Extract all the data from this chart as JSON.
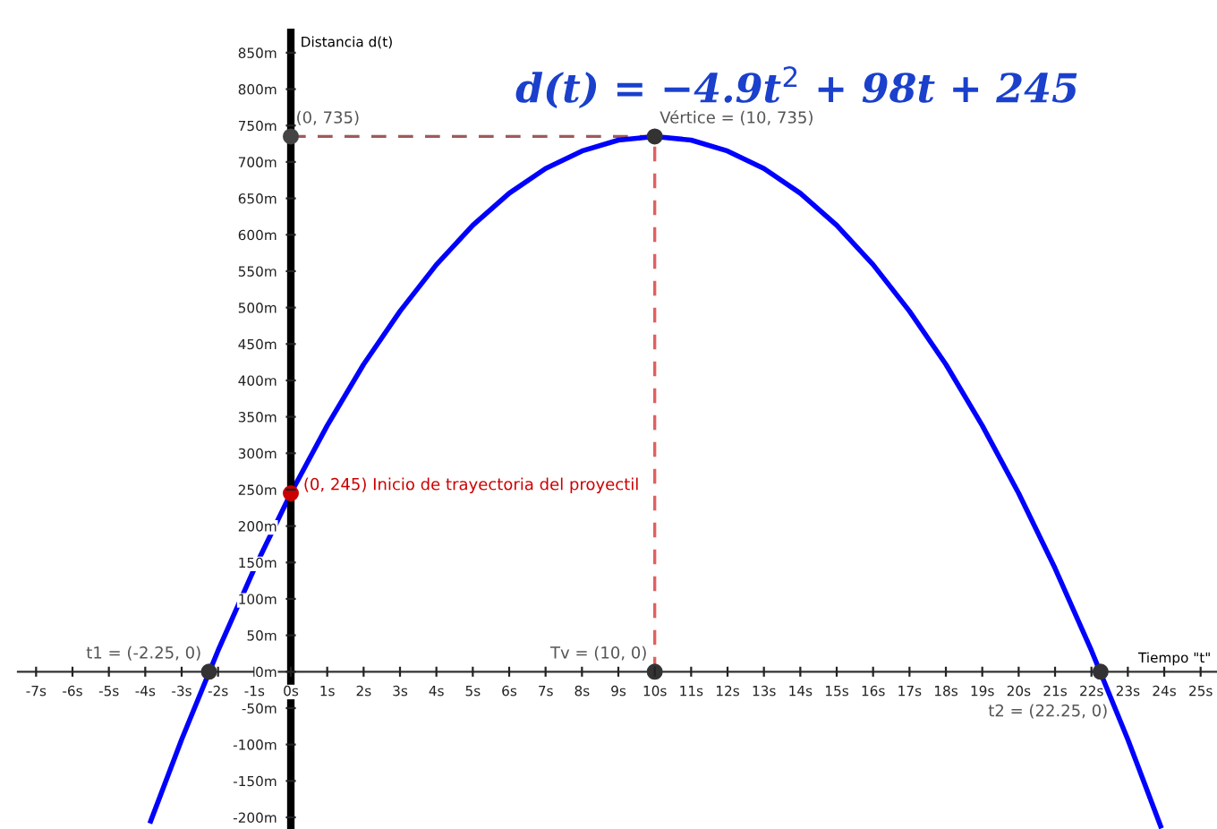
{
  "chart_data": {
    "type": "line",
    "title": "d(t) = −4.9t$^{2}$ + 98t + 245",
    "xlabel": "Tiempo \"t\"",
    "ylabel": "Distancia d(t)",
    "xlim": [
      -7.5,
      25.45
    ],
    "ylim": [
      -216,
      878
    ],
    "xticks": [
      {
        "value": -7,
        "label": "-7s"
      },
      {
        "value": -6,
        "label": "-6s"
      },
      {
        "value": -5,
        "label": "-5s"
      },
      {
        "value": -4,
        "label": "-4s"
      },
      {
        "value": -3,
        "label": "-3s"
      },
      {
        "value": -2,
        "label": "-2s"
      },
      {
        "value": -1,
        "label": "-1s"
      },
      {
        "value": 0,
        "label": "0s"
      },
      {
        "value": 1,
        "label": "1s"
      },
      {
        "value": 2,
        "label": "2s"
      },
      {
        "value": 3,
        "label": "3s"
      },
      {
        "value": 4,
        "label": "4s"
      },
      {
        "value": 5,
        "label": "5s"
      },
      {
        "value": 6,
        "label": "6s"
      },
      {
        "value": 7,
        "label": "7s"
      },
      {
        "value": 8,
        "label": "8s"
      },
      {
        "value": 9,
        "label": "9s"
      },
      {
        "value": 10,
        "label": "10s"
      },
      {
        "value": 11,
        "label": "11s"
      },
      {
        "value": 12,
        "label": "12s"
      },
      {
        "value": 13,
        "label": "13s"
      },
      {
        "value": 14,
        "label": "14s"
      },
      {
        "value": 15,
        "label": "15s"
      },
      {
        "value": 16,
        "label": "16s"
      },
      {
        "value": 17,
        "label": "17s"
      },
      {
        "value": 18,
        "label": "18s"
      },
      {
        "value": 19,
        "label": "19s"
      },
      {
        "value": 20,
        "label": "20s"
      },
      {
        "value": 21,
        "label": "21s"
      },
      {
        "value": 22,
        "label": "22s"
      },
      {
        "value": 23,
        "label": "23s"
      },
      {
        "value": 24,
        "label": "24s"
      },
      {
        "value": 25,
        "label": "25s"
      }
    ],
    "yticks": [
      {
        "value": -200,
        "label": "-200m"
      },
      {
        "value": -150,
        "label": "-150m"
      },
      {
        "value": -100,
        "label": "-100m"
      },
      {
        "value": -50,
        "label": "-50m"
      },
      {
        "value": 0,
        "label": "0m"
      },
      {
        "value": 50,
        "label": "50m"
      },
      {
        "value": 100,
        "label": "100m"
      },
      {
        "value": 150,
        "label": "150m"
      },
      {
        "value": 200,
        "label": "200m"
      },
      {
        "value": 250,
        "label": "250m"
      },
      {
        "value": 300,
        "label": "300m"
      },
      {
        "value": 350,
        "label": "350m"
      },
      {
        "value": 400,
        "label": "400m"
      },
      {
        "value": 450,
        "label": "450m"
      },
      {
        "value": 500,
        "label": "500m"
      },
      {
        "value": 550,
        "label": "550m"
      },
      {
        "value": 600,
        "label": "600m"
      },
      {
        "value": 650,
        "label": "650m"
      },
      {
        "value": 700,
        "label": "700m"
      },
      {
        "value": 750,
        "label": "750m"
      },
      {
        "value": 800,
        "label": "800m"
      },
      {
        "value": 850,
        "label": "850m"
      }
    ],
    "grid": false,
    "series": [
      {
        "color": "#a05a5a",
        "line_style": "dashed",
        "x": [
          0,
          10
        ],
        "values": [
          735,
          735
        ]
      },
      {
        "color": "#e06060",
        "line_style": "dashed",
        "x": [
          10,
          10
        ],
        "values": [
          0,
          735
        ]
      },
      {
        "color": "#0000ff",
        "line_style": "solid",
        "x": [
          -3.85,
          -3,
          -2,
          -1,
          0,
          1,
          2,
          3,
          4,
          5,
          6,
          7,
          8,
          9,
          10,
          11,
          12,
          13,
          14,
          15,
          16,
          17,
          18,
          19,
          20,
          21,
          22,
          23,
          23.9
        ],
        "values": [
          -205,
          -93,
          29,
          142,
          245,
          338,
          422,
          495,
          559,
          613,
          657,
          691,
          715,
          730,
          735,
          730,
          715,
          691,
          657,
          613,
          559,
          495,
          422,
          338,
          245,
          142,
          29,
          -93,
          -212
        ]
      },
      {
        "type": "scatter",
        "marker": "circle",
        "x": [
          0,
          10,
          0,
          -2.25,
          10,
          22.25
        ],
        "values": [
          735,
          735,
          245,
          0,
          0,
          0
        ],
        "colors": [
          "#444444",
          "#333333",
          "#cc0000",
          "#333333",
          "#333333",
          "#333333"
        ]
      }
    ],
    "annotations": [
      {
        "text": "(0, 735)",
        "x": 0,
        "y": 735
      },
      {
        "text": "Vértice = (10, 735)",
        "x": 10,
        "y": 735
      },
      {
        "text": "(0, 245) Inicio de trayectoria del proyectil",
        "x": 0,
        "y": 245
      },
      {
        "text": "t1 = (-2.25, 0)",
        "x": -2.25,
        "y": 0
      },
      {
        "text": "Tv = (10, 0)",
        "x": 10,
        "y": 0
      },
      {
        "text": "t2 = (22.25, 0)",
        "x": 22.25,
        "y": 0
      }
    ]
  }
}
